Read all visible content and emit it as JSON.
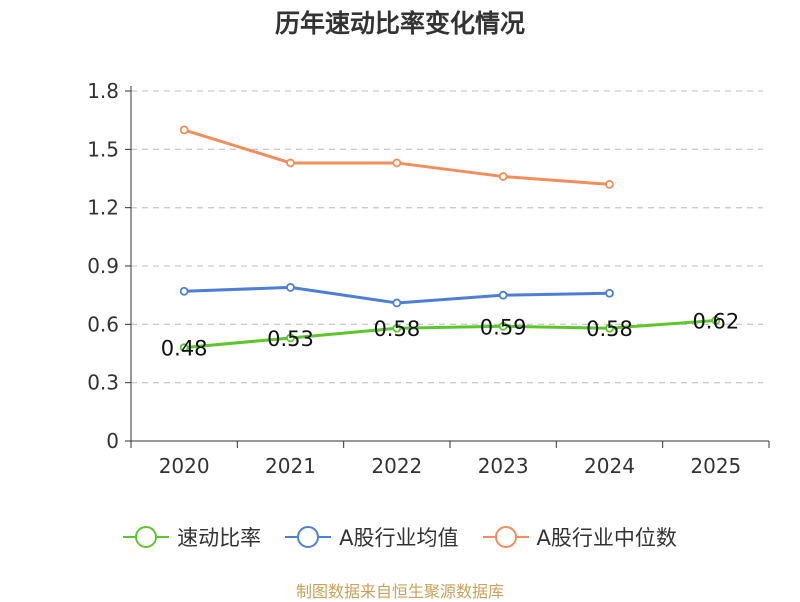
{
  "chart_data": {
    "type": "line",
    "title": "历年速动比率变化情况",
    "categories": [
      "2020",
      "2021",
      "2022",
      "2023",
      "2024",
      "2025"
    ],
    "y_ticks": [
      "0",
      "0.3",
      "0.6",
      "0.9",
      "1.2",
      "1.5",
      "1.8"
    ],
    "ylim": [
      0,
      1.8
    ],
    "grid": true,
    "legend_position": "bottom",
    "series": [
      {
        "name": "速动比率",
        "color": "#5cc72b",
        "values": [
          0.48,
          0.53,
          0.58,
          0.59,
          0.58,
          0.62
        ],
        "labels": [
          "0.48",
          "0.53",
          "0.58",
          "0.59",
          "0.58",
          "0.62"
        ]
      },
      {
        "name": "A股行业均值",
        "color": "#4e7fd6",
        "values": [
          0.77,
          0.79,
          0.71,
          0.75,
          0.76,
          null
        ]
      },
      {
        "name": "A股行业中位数",
        "color": "#f28e5b",
        "values": [
          1.6,
          1.43,
          1.43,
          1.36,
          1.32,
          null
        ]
      }
    ]
  },
  "source_text": "制图数据来自恒生聚源数据库"
}
